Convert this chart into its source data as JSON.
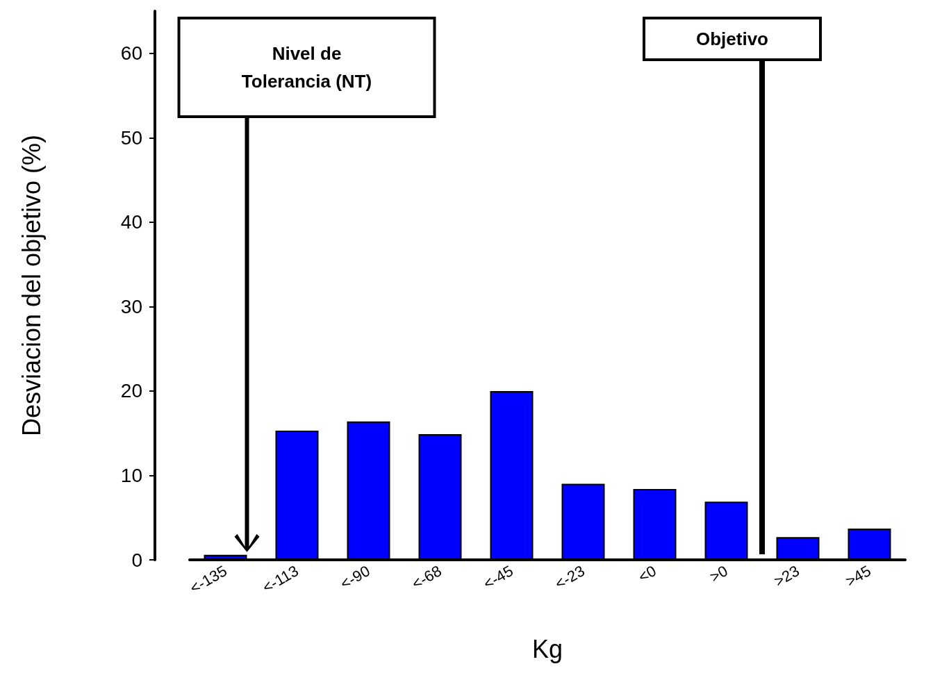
{
  "chart_data": {
    "type": "bar",
    "xlabel": "Kg",
    "ylabel": "Desviacion del objetivo (%)",
    "categories": [
      "<-135",
      "<-113",
      "<-90",
      "<-68",
      "<-45",
      "<-23",
      "<0",
      ">0",
      ">23",
      ">45"
    ],
    "values": [
      0.6,
      15.3,
      16.4,
      14.9,
      20.0,
      9.0,
      8.4,
      6.9,
      2.7,
      3.7
    ],
    "color": "#0000ff",
    "ylim": [
      0,
      65
    ],
    "yticks": [
      0,
      10,
      20,
      30,
      40,
      50,
      60
    ],
    "grid": false,
    "annotations": [
      "Nivel de Tolerancia (NT)",
      "Objetivo"
    ]
  }
}
